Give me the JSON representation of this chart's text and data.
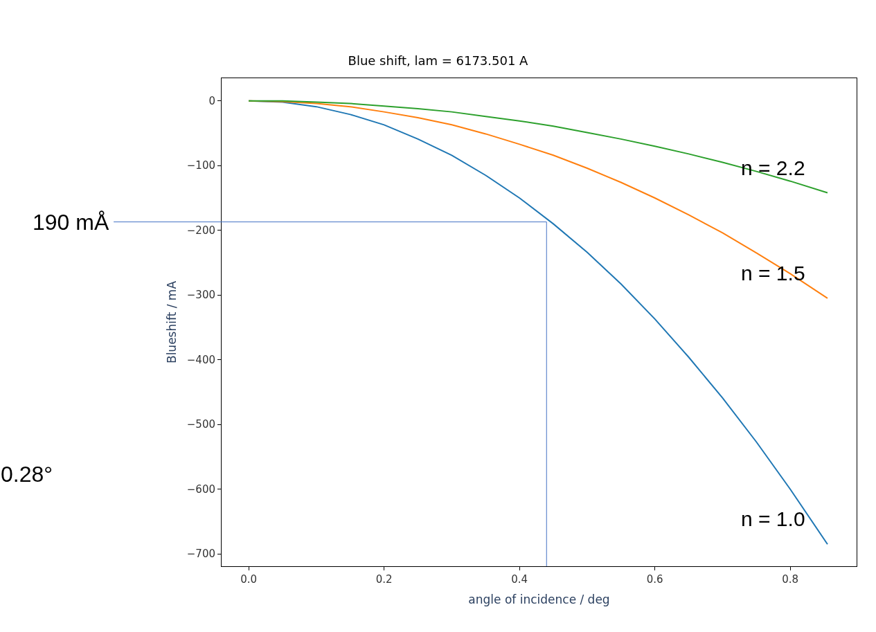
{
  "chart_data": {
    "type": "line",
    "title": "Blue shift, lam = 6173.501 A",
    "xlabel": "angle of incidence / deg",
    "ylabel": "Blueshift / mA",
    "x": [
      0,
      0.05,
      0.1,
      0.15,
      0.2,
      0.25,
      0.3,
      0.35,
      0.4,
      0.45,
      0.5,
      0.55,
      0.6,
      0.65,
      0.7,
      0.75,
      0.8,
      0.855
    ],
    "series": [
      {
        "name": "n = 1.0",
        "color": "#1f77b4",
        "values": [
          0,
          -2,
          -9,
          -21,
          -37,
          -59,
          -84,
          -115,
          -150,
          -190,
          -234,
          -283,
          -337,
          -396,
          -459,
          -527,
          -600,
          -685
        ]
      },
      {
        "name": "n = 1.5",
        "color": "#ff7f0e",
        "values": [
          0,
          -1,
          -4,
          -9,
          -17,
          -26,
          -37,
          -51,
          -67,
          -84,
          -104,
          -126,
          -150,
          -176,
          -204,
          -235,
          -267,
          -305
        ]
      },
      {
        "name": "n = 2.2",
        "color": "#2ca02c",
        "values": [
          0,
          0,
          -2,
          -4,
          -8,
          -12,
          -17,
          -24,
          -31,
          -39,
          -49,
          -59,
          -70,
          -82,
          -95,
          -109,
          -124,
          -142
        ]
      }
    ],
    "xlim": [
      -0.04,
      0.898
    ],
    "ylim": [
      -719,
      35
    ],
    "xticks": [
      {
        "value": 0,
        "label": "0.0"
      },
      0.2,
      0.4,
      0.6,
      0.8
    ],
    "yticks": [
      {
        "value": -700,
        "label": "−700"
      },
      {
        "value": -600,
        "label": "−600"
      },
      {
        "value": -500,
        "label": "−500"
      },
      {
        "value": -400,
        "label": "−400"
      },
      {
        "value": -300,
        "label": "−300"
      },
      {
        "value": -200,
        "label": "−200"
      },
      {
        "value": -100,
        "label": "−100"
      },
      0
    ],
    "ref_lines": [
      {
        "axis": "y",
        "value": -187,
        "label": "190 mÅ",
        "color": "#4472c4"
      },
      {
        "axis": "x",
        "value": 0.44,
        "label": null,
        "color": "#4472c4"
      }
    ],
    "annotations": [
      "0.28°"
    ],
    "legend": false,
    "marker": "none",
    "line_style": "solid"
  }
}
